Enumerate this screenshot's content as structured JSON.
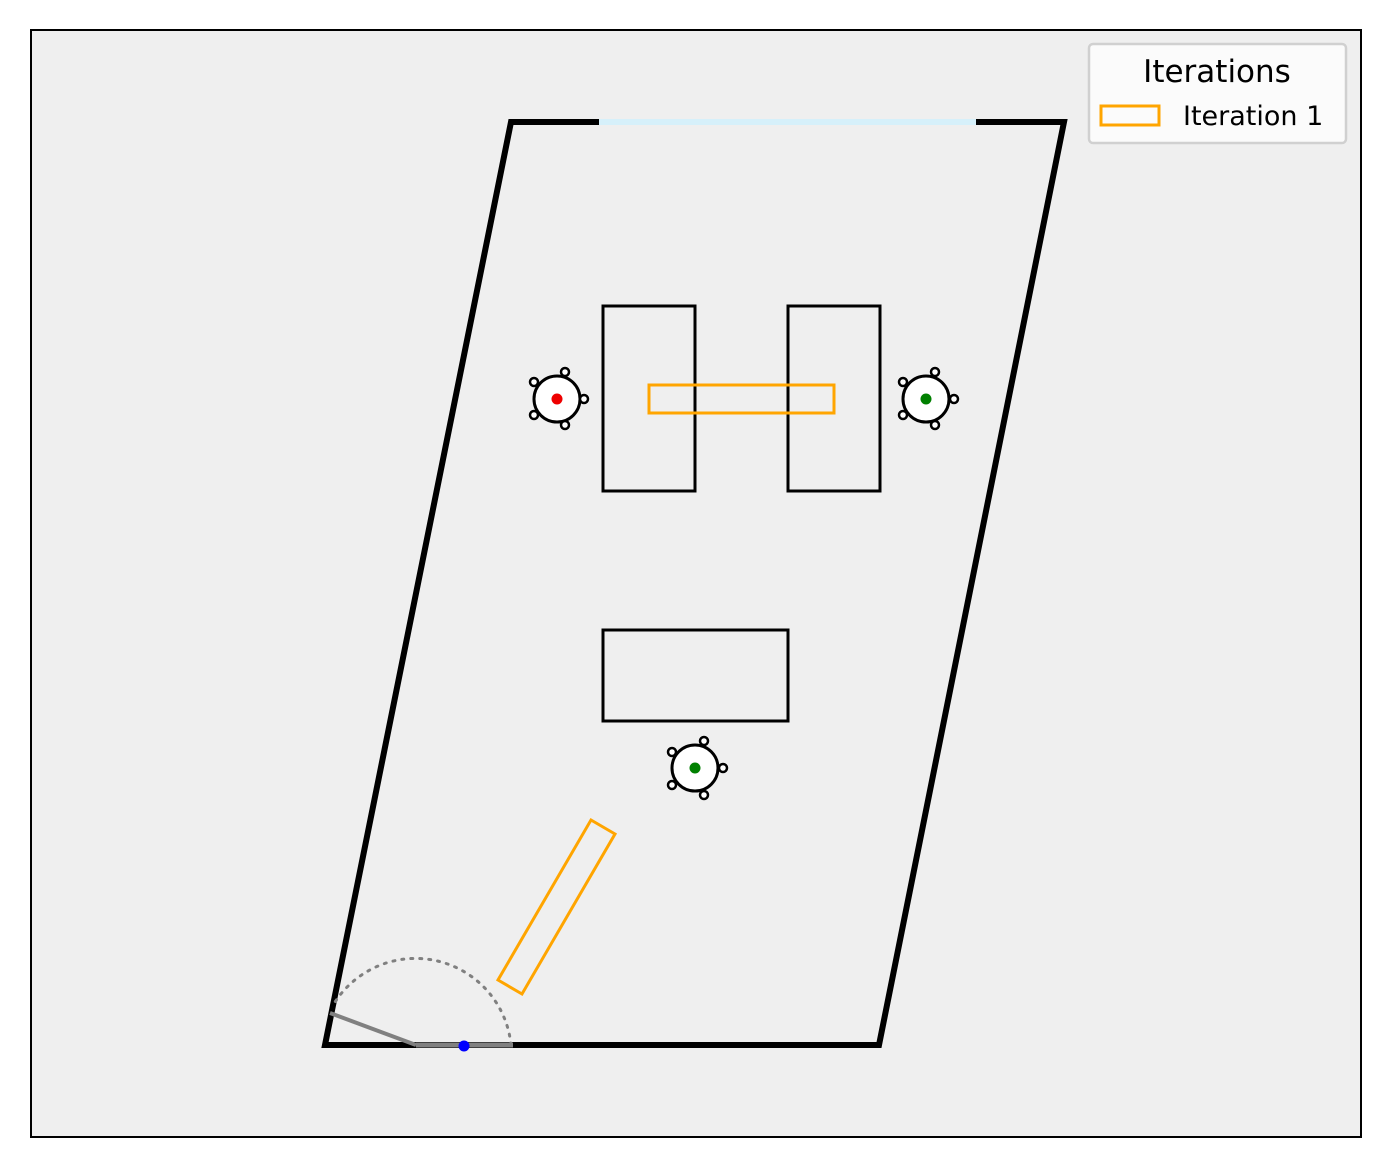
{
  "legend": {
    "title": "Iterations",
    "entries": [
      {
        "label": "Iteration 1",
        "color": "#FFA500"
      }
    ]
  },
  "colors": {
    "canvas_bg": "#EFEFEF",
    "outer_frame": "#000000",
    "room_walls": "#000000",
    "window": "#D6F0FA",
    "furniture_outline": "#000000",
    "door": "#808080",
    "door_hinge": "#0000FF",
    "chair_occupied": "#EE0000",
    "chair_free": "#008000"
  },
  "elements": {
    "room": "room-walls",
    "window": "window",
    "tables": [
      "table-left",
      "table-right",
      "table-bottom"
    ],
    "chairs": [
      {
        "name": "chair-left",
        "status": "red"
      },
      {
        "name": "chair-right",
        "status": "green"
      },
      {
        "name": "chair-bottom",
        "status": "green"
      }
    ],
    "door": "door",
    "iteration_shapes": [
      "iteration-1-rect-center",
      "iteration-1-rect-diagonal"
    ]
  }
}
